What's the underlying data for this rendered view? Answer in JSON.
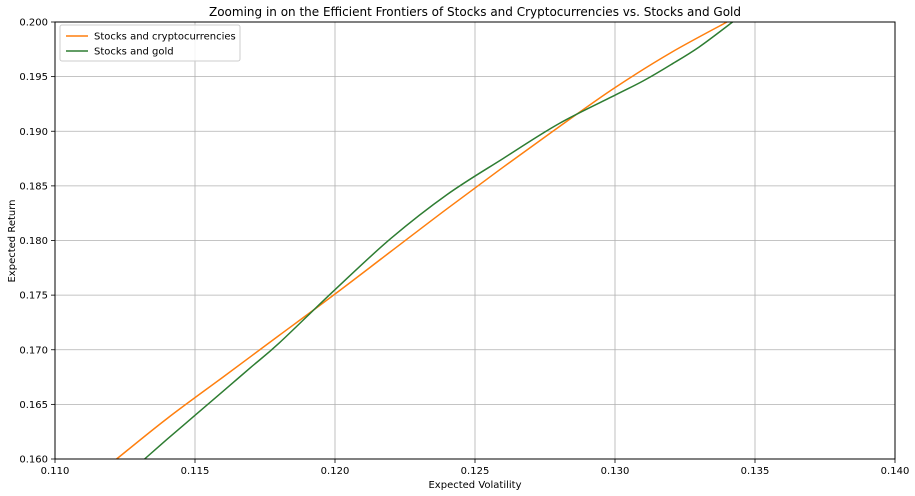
{
  "chart_data": {
    "type": "line",
    "title": "Zooming in on the Efficient Frontiers of Stocks and Cryptocurrencies vs. Stocks and Gold",
    "xlabel": "Expected Volatility",
    "ylabel": "Expected Return",
    "xlim": [
      0.11,
      0.14
    ],
    "ylim": [
      0.16,
      0.2
    ],
    "x_ticks": [
      "0.110",
      "0.115",
      "0.120",
      "0.125",
      "0.130",
      "0.135",
      "0.140"
    ],
    "y_ticks": [
      "0.160",
      "0.165",
      "0.170",
      "0.175",
      "0.180",
      "0.185",
      "0.190",
      "0.195",
      "0.200"
    ],
    "grid": true,
    "legend_position": "top-left",
    "series": [
      {
        "name": "Stocks and cryptocurrencies",
        "color": "#ff7f0e",
        "x": [
          0.1122,
          0.114,
          0.116,
          0.118,
          0.12,
          0.122,
          0.124,
          0.126,
          0.128,
          0.13,
          0.132,
          0.134
        ],
        "y": [
          0.16,
          0.1637,
          0.1675,
          0.1713,
          0.1751,
          0.179,
          0.1829,
          0.1867,
          0.1904,
          0.194,
          0.1972,
          0.2
        ]
      },
      {
        "name": "Stocks and gold",
        "color": "#2e7d32",
        "x": [
          0.1132,
          0.114,
          0.115,
          0.116,
          0.117,
          0.118,
          0.12,
          0.122,
          0.124,
          0.126,
          0.128,
          0.13,
          0.131,
          0.132,
          0.133,
          0.1342
        ],
        "y": [
          0.16,
          0.1618,
          0.164,
          0.1662,
          0.1684,
          0.1706,
          0.1755,
          0.1802,
          0.1842,
          0.1875,
          0.1907,
          0.1933,
          0.1946,
          0.1961,
          0.1977,
          0.2
        ]
      }
    ]
  }
}
